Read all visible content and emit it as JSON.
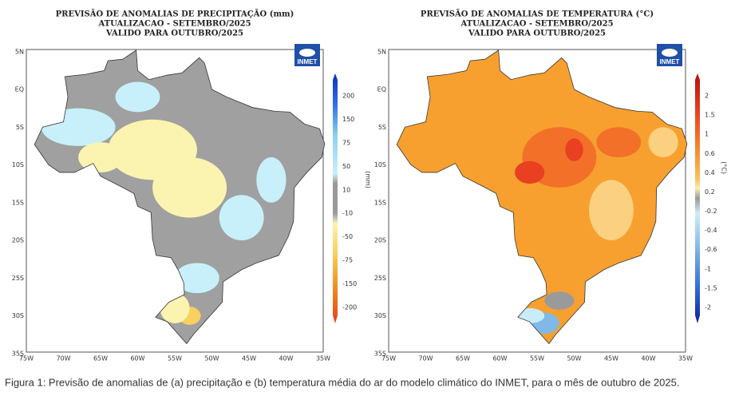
{
  "panels": [
    {
      "title": [
        "PREVISÃO DE ANOMALIAS DE PRECIPITAÇÃO (mm)",
        "ATUALIZACAO - SETEMBRO/2025",
        "VALIDO PARA OUTUBRO/2025"
      ],
      "logo": "INMET",
      "lat_labels": [
        "5N",
        "EQ",
        "5S",
        "10S",
        "15S",
        "20S",
        "25S",
        "30S",
        "35S"
      ],
      "lon_labels": [
        "75W",
        "70W",
        "65W",
        "60W",
        "55W",
        "50W",
        "45W",
        "40W",
        "35W"
      ],
      "colorbar": {
        "unit": "(mm)",
        "labels": [
          "200",
          "150",
          "75",
          "50",
          "10",
          "-10",
          "-50",
          "-75",
          "-150",
          "-200"
        ]
      }
    },
    {
      "title": [
        "PREVISÃO DE ANOMALIAS DE TEMPERATURA (°C)",
        "ATUALIZACAO - SETEMBRO/2025",
        "VALIDO PARA OUTUBRO/2025"
      ],
      "logo": "INMET",
      "lat_labels": [
        "5N",
        "EQ",
        "5S",
        "10S",
        "15S",
        "20S",
        "25S",
        "30S",
        "35S"
      ],
      "lon_labels": [
        "75W",
        "70W",
        "65W",
        "60W",
        "55W",
        "50W",
        "45W",
        "40W",
        "35W"
      ],
      "colorbar": {
        "unit": "(°C)",
        "labels": [
          "2",
          "1.5",
          "1",
          "0.6",
          "0.4",
          "0.2",
          "-0.2",
          "-0.4",
          "-0.6",
          "-1",
          "-1.5",
          "-2"
        ]
      }
    }
  ],
  "caption": "Figura 1: Previsão de anomalias de (a) precipitação e (b) temperatura média do ar do modelo climático do INMET, para o mês de outubro de 2025."
}
